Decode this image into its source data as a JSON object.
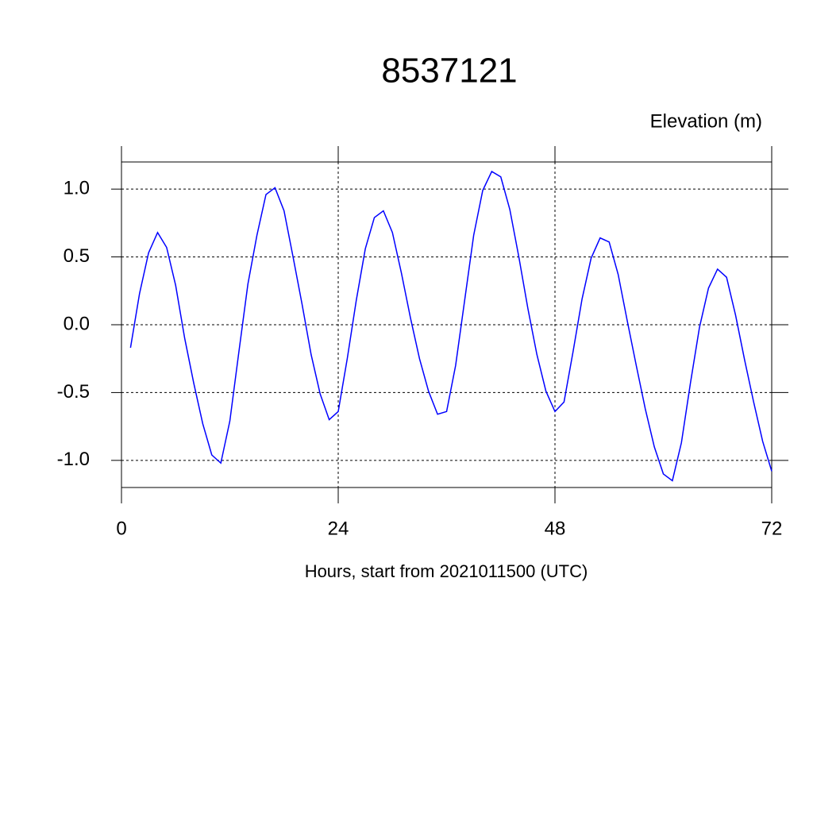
{
  "chart_data": {
    "type": "line",
    "title": "8537121",
    "subtitle": "Elevation (m)",
    "x_label": "Hours, start from 2021011500 (UTC)",
    "x": [
      1,
      2,
      3,
      4,
      5,
      6,
      7,
      8,
      9,
      10,
      11,
      12,
      13,
      14,
      15,
      16,
      17,
      18,
      19,
      20,
      21,
      22,
      23,
      24,
      25,
      26,
      27,
      28,
      29,
      30,
      31,
      32,
      33,
      34,
      35,
      36,
      37,
      38,
      39,
      40,
      41,
      42,
      43,
      44,
      45,
      46,
      47,
      48,
      49,
      50,
      51,
      52,
      53,
      54,
      55,
      56,
      57,
      58,
      59,
      60,
      61,
      62,
      63,
      64,
      65,
      66,
      67,
      68,
      69,
      70,
      71,
      72
    ],
    "series": [
      {
        "color": "#0000ff",
        "values": [
          -0.17,
          0.23,
          0.53,
          0.68,
          0.57,
          0.29,
          -0.1,
          -0.43,
          -0.73,
          -0.96,
          -1.02,
          -0.71,
          -0.2,
          0.3,
          0.66,
          0.96,
          1.01,
          0.84,
          0.5,
          0.15,
          -0.22,
          -0.51,
          -0.7,
          -0.64,
          -0.25,
          0.18,
          0.56,
          0.79,
          0.84,
          0.68,
          0.38,
          0.05,
          -0.25,
          -0.49,
          -0.66,
          -0.64,
          -0.3,
          0.18,
          0.66,
          0.99,
          1.13,
          1.09,
          0.85,
          0.5,
          0.12,
          -0.22,
          -0.49,
          -0.64,
          -0.57,
          -0.2,
          0.19,
          0.49,
          0.64,
          0.61,
          0.37,
          0.03,
          -0.3,
          -0.62,
          -0.9,
          -1.1,
          -1.15,
          -0.87,
          -0.43,
          -0.02,
          0.27,
          0.41,
          0.35,
          0.07,
          -0.26,
          -0.57,
          -0.86,
          -1.08
        ]
      }
    ],
    "xlim": [
      0,
      72
    ],
    "xticks": [
      0,
      24,
      48,
      72
    ],
    "ylim": [
      -1.2,
      1.2
    ],
    "yticks": [
      {
        "value": -1.0,
        "label": "-1.0"
      },
      {
        "value": -0.5,
        "label": "-0.5"
      },
      {
        "value": 0.0,
        "label": "0.0"
      },
      {
        "value": 0.5,
        "label": "0.5"
      },
      {
        "value": 1.0,
        "label": "1.0"
      }
    ],
    "grid": true
  }
}
